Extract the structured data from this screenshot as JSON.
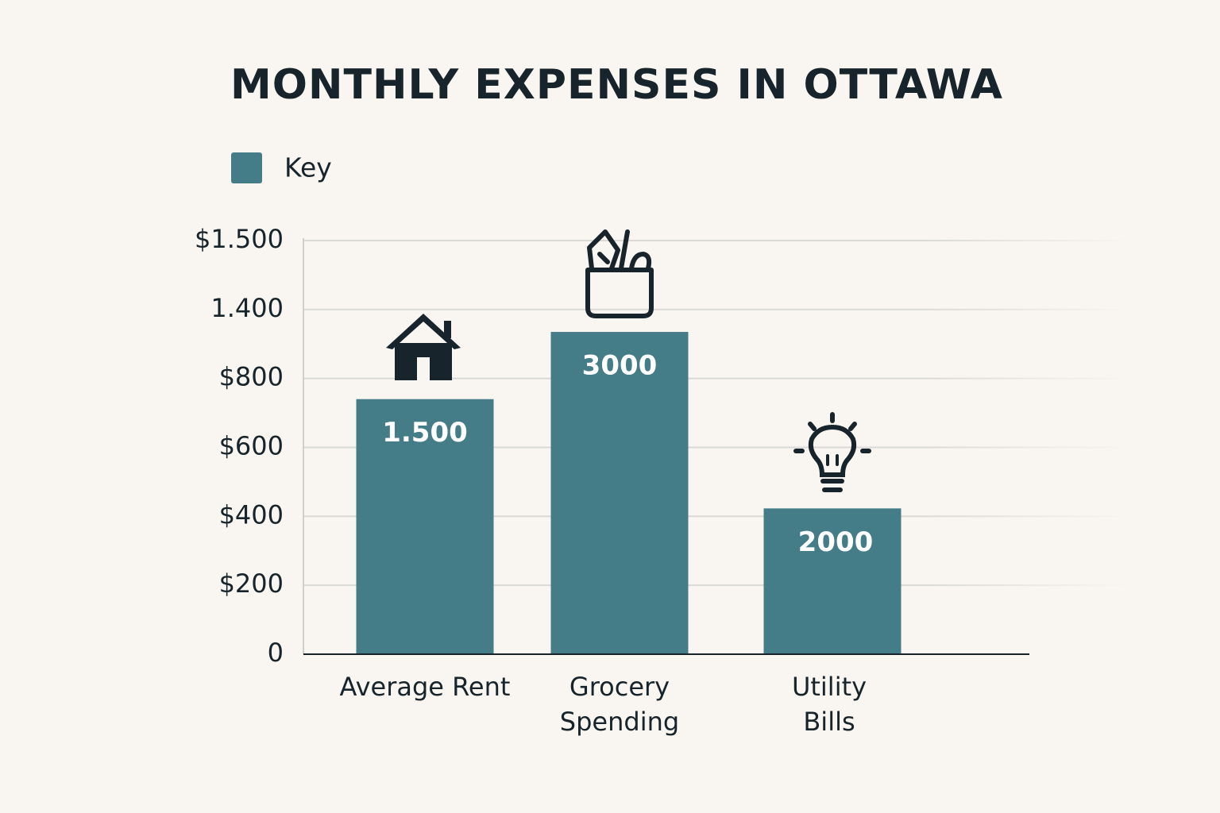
{
  "chart_data": {
    "type": "bar",
    "title": "MONTHLY EXPENSES IN OTTAWA",
    "categories": [
      "Average Rent",
      "Grocery\nSpending",
      "Utility\nBills"
    ],
    "series": [
      {
        "name": "Key",
        "color": "#447d87",
        "values": [
          740,
          1205,
          423
        ]
      }
    ],
    "annotations": [
      "1.500",
      "3000",
      "2000"
    ],
    "ylim": [
      0,
      1500
    ],
    "yticks": [
      0,
      {
        "value": 200,
        "label": "$200"
      },
      {
        "value": 400,
        "label": "$400"
      },
      {
        "value": 600,
        "label": "$600"
      },
      {
        "value": 800,
        "label": "$800"
      },
      {
        "value": 1400,
        "label": "1.400"
      },
      {
        "value": 1500,
        "label": "$1.500"
      }
    ],
    "grid": true,
    "legend": "top-left"
  }
}
